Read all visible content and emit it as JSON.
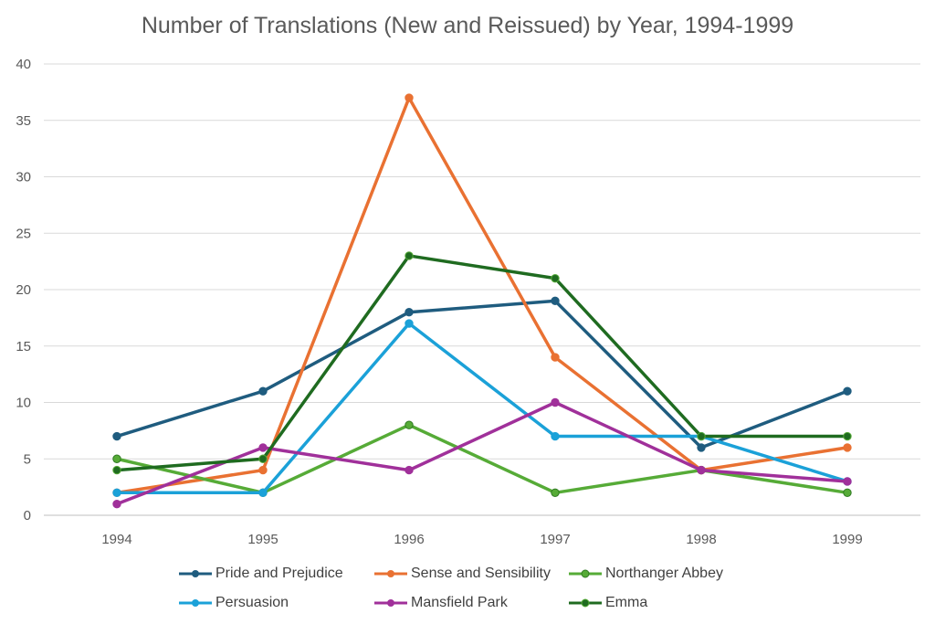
{
  "chart_data": {
    "type": "line",
    "title": "Number of Translations (New and Reissued) by Year, 1994-1999",
    "xlabel": "",
    "ylabel": "",
    "categories": [
      "1994",
      "1995",
      "1996",
      "1997",
      "1998",
      "1999"
    ],
    "ylim": [
      0,
      40
    ],
    "yticks": [
      "0",
      "5",
      "10",
      "15",
      "20",
      "25",
      "30",
      "35",
      "40"
    ],
    "grid": true,
    "legend_position": "bottom",
    "series": [
      {
        "name": "Pride and Prejudice",
        "color": "#1f5c7f",
        "values": [
          7,
          11,
          18,
          19,
          6,
          11
        ]
      },
      {
        "name": "Sense and Sensibility",
        "color": "#e97132",
        "values": [
          2,
          4,
          37,
          14,
          4,
          6
        ]
      },
      {
        "name": "Northanger Abbey",
        "color": "#56ab37",
        "values": [
          5,
          2,
          8,
          2,
          4,
          2
        ]
      },
      {
        "name": "Persuasion",
        "color": "#1ba1d8",
        "values": [
          2,
          2,
          17,
          7,
          7,
          3
        ]
      },
      {
        "name": "Mansfield Park",
        "color": "#a0309a",
        "values": [
          1,
          6,
          4,
          10,
          4,
          3
        ]
      },
      {
        "name": "Emma",
        "color": "#1f6b20",
        "values": [
          4,
          5,
          23,
          21,
          7,
          7
        ]
      }
    ]
  }
}
